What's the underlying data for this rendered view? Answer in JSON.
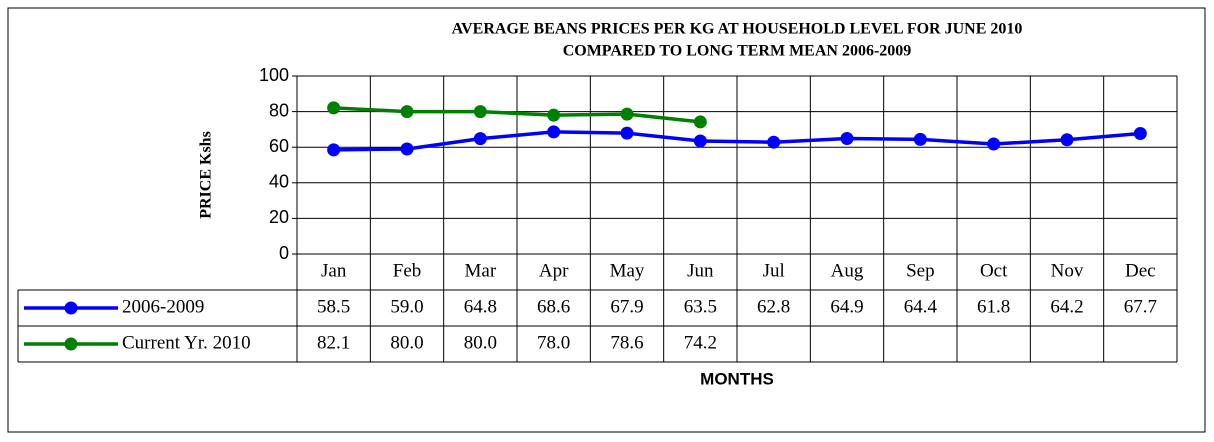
{
  "chart_data": {
    "type": "line",
    "title": "AVERAGE BEANS PRICES PER KG AT HOUSEHOLD LEVEL FOR JUNE 2010",
    "subtitle": "COMPARED TO LONG TERM MEAN 2006-2009",
    "y_label": "PRICE Kshs",
    "x_label": "MONTHS",
    "categories": [
      "Jan",
      "Feb",
      "Mar",
      "Apr",
      "May",
      "Jun",
      "Jul",
      "Aug",
      "Sep",
      "Oct",
      "Nov",
      "Dec"
    ],
    "series": [
      {
        "name": "2006-2009",
        "color": "#0000ff",
        "values": [
          58.5,
          59.0,
          64.8,
          68.6,
          67.9,
          63.5,
          62.8,
          64.9,
          64.4,
          61.8,
          64.2,
          67.7
        ],
        "value_labels": [
          "58.5",
          "59.0",
          "64.8",
          "68.6",
          "67.9",
          "63.5",
          "62.8",
          "64.9",
          "64.4",
          "61.8",
          "64.2",
          "67.7"
        ]
      },
      {
        "name": "Current Yr. 2010",
        "color": "#008000",
        "values": [
          82.1,
          80.0,
          80.0,
          78.0,
          78.6,
          74.2,
          null,
          null,
          null,
          null,
          null,
          null
        ],
        "value_labels": [
          "82.1",
          "80.0",
          "80.0",
          "78.0",
          "78.6",
          "74.2",
          null,
          null,
          null,
          null,
          null,
          null
        ]
      }
    ],
    "ylim": [
      0,
      100
    ],
    "yticks": [
      0,
      20,
      40,
      60,
      80,
      100
    ],
    "grid": true
  }
}
